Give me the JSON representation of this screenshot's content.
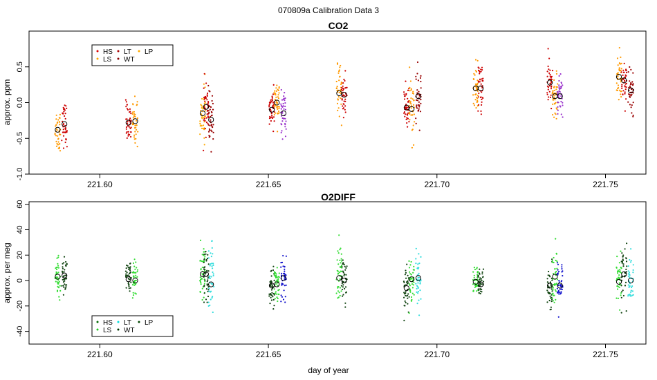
{
  "figure": {
    "title": "070809a   Calibration Data 3",
    "xlabel": "day of year"
  },
  "chart_data": [
    {
      "type": "scatter",
      "id": "co2",
      "title": "CO2",
      "ylabel": "approx. ppm",
      "xlim": [
        221.579,
        221.762
      ],
      "ylim": [
        -1.0,
        1.0
      ],
      "xticks": [
        221.6,
        221.65,
        221.7,
        221.75
      ],
      "xtick_labels": [
        "221.60",
        "221.65",
        "221.70",
        "221.75"
      ],
      "yticks": [
        -1.0,
        -0.5,
        0.0,
        0.5
      ],
      "ytick_labels": [
        "-1.0",
        "-0.5",
        "0.0",
        "0.5"
      ],
      "legend": {
        "position": "top-left",
        "entries": [
          {
            "label": "HS",
            "color": "#dd0000"
          },
          {
            "label": "LT",
            "color": "#aa0000"
          },
          {
            "label": "LP",
            "color": "#ffaa00"
          },
          {
            "label": "LS",
            "color": "#ffaa00"
          },
          {
            "label": "WT",
            "color": "#880000"
          }
        ]
      },
      "groups": [
        {
          "x": 221.5875,
          "mean": -0.38,
          "spread": 0.33,
          "color": "#ff9900"
        },
        {
          "x": 221.5895,
          "mean": -0.3,
          "spread": 0.28,
          "color": "#cc0000"
        },
        {
          "x": 221.6085,
          "mean": -0.28,
          "spread": 0.3,
          "color": "#cc0000"
        },
        {
          "x": 221.6105,
          "mean": -0.26,
          "spread": 0.32,
          "color": "#ff9900"
        },
        {
          "x": 221.6305,
          "mean": -0.15,
          "spread": 0.38,
          "color": "#ffaa00"
        },
        {
          "x": 221.6315,
          "mean": -0.06,
          "spread": 0.35,
          "color": "#cc0000"
        },
        {
          "x": 221.633,
          "mean": -0.24,
          "spread": 0.35,
          "color": "#990000"
        },
        {
          "x": 221.651,
          "mean": -0.1,
          "spread": 0.25,
          "color": "#cc0000"
        },
        {
          "x": 221.6525,
          "mean": 0.0,
          "spread": 0.28,
          "color": "#ff9900"
        },
        {
          "x": 221.6545,
          "mean": -0.15,
          "spread": 0.3,
          "color": "#9933cc"
        },
        {
          "x": 221.671,
          "mean": 0.13,
          "spread": 0.35,
          "color": "#ff9900"
        },
        {
          "x": 221.6725,
          "mean": 0.11,
          "spread": 0.35,
          "color": "#cc0000"
        },
        {
          "x": 221.691,
          "mean": -0.07,
          "spread": 0.35,
          "color": "#cc0000"
        },
        {
          "x": 221.6925,
          "mean": -0.09,
          "spread": 0.38,
          "color": "#ff9900"
        },
        {
          "x": 221.6945,
          "mean": 0.09,
          "spread": 0.4,
          "color": "#990000"
        },
        {
          "x": 221.7115,
          "mean": 0.2,
          "spread": 0.32,
          "color": "#ff9900"
        },
        {
          "x": 221.713,
          "mean": 0.2,
          "spread": 0.35,
          "color": "#cc0000"
        },
        {
          "x": 221.7335,
          "mean": 0.28,
          "spread": 0.3,
          "color": "#cc0000"
        },
        {
          "x": 221.735,
          "mean": 0.09,
          "spread": 0.3,
          "color": "#ff9900"
        },
        {
          "x": 221.7365,
          "mean": 0.09,
          "spread": 0.28,
          "color": "#9933cc"
        },
        {
          "x": 221.754,
          "mean": 0.36,
          "spread": 0.32,
          "color": "#ff9900"
        },
        {
          "x": 221.7555,
          "mean": 0.31,
          "spread": 0.3,
          "color": "#cc0000"
        },
        {
          "x": 221.7575,
          "mean": 0.17,
          "spread": 0.35,
          "color": "#990000"
        }
      ]
    },
    {
      "type": "scatter",
      "id": "o2diff",
      "title": "O2DIFF",
      "ylabel": "approx. per meg",
      "xlim": [
        221.579,
        221.762
      ],
      "ylim": [
        -50,
        62
      ],
      "xticks": [
        221.6,
        221.65,
        221.7,
        221.75
      ],
      "xtick_labels": [
        "221.60",
        "221.65",
        "221.70",
        "221.75"
      ],
      "yticks": [
        -40,
        -20,
        0,
        20,
        40,
        60
      ],
      "ytick_labels": [
        "-40",
        "-20",
        "0",
        "20",
        "40",
        "60"
      ],
      "legend": {
        "position": "bottom-left",
        "entries": [
          {
            "label": "HS",
            "color": "#006600"
          },
          {
            "label": "LT",
            "color": "#00dddd"
          },
          {
            "label": "LP",
            "color": "#004400"
          },
          {
            "label": "LS",
            "color": "#22cc22"
          },
          {
            "label": "WT",
            "color": "#003300"
          }
        ]
      },
      "groups": [
        {
          "x": 221.5875,
          "mean": 3,
          "spread": 14,
          "color": "#33dd33"
        },
        {
          "x": 221.5895,
          "mean": 4,
          "spread": 16,
          "color": "#114411"
        },
        {
          "x": 221.6085,
          "mean": 1,
          "spread": 14,
          "color": "#114411"
        },
        {
          "x": 221.6105,
          "mean": 0,
          "spread": 15,
          "color": "#33dd33"
        },
        {
          "x": 221.6305,
          "mean": 5,
          "spread": 25,
          "color": "#33dd33"
        },
        {
          "x": 221.6315,
          "mean": 5,
          "spread": 22,
          "color": "#114411"
        },
        {
          "x": 221.633,
          "mean": -3,
          "spread": 30,
          "color": "#33dddd"
        },
        {
          "x": 221.651,
          "mean": -4,
          "spread": 14,
          "color": "#114411"
        },
        {
          "x": 221.6525,
          "mean": -3,
          "spread": 14,
          "color": "#33dd33"
        },
        {
          "x": 221.6545,
          "mean": 2,
          "spread": 16,
          "color": "#1111cc"
        },
        {
          "x": 221.671,
          "mean": 2,
          "spread": 30,
          "color": "#33dd33"
        },
        {
          "x": 221.6725,
          "mean": 0,
          "spread": 16,
          "color": "#114411"
        },
        {
          "x": 221.691,
          "mean": -6,
          "spread": 18,
          "color": "#114411"
        },
        {
          "x": 221.6925,
          "mean": 1,
          "spread": 16,
          "color": "#33dd33"
        },
        {
          "x": 221.6945,
          "mean": 2,
          "spread": 20,
          "color": "#33dddd"
        },
        {
          "x": 221.7115,
          "mean": -1,
          "spread": 12,
          "color": "#33dd33"
        },
        {
          "x": 221.713,
          "mean": -3,
          "spread": 12,
          "color": "#114411"
        },
        {
          "x": 221.7335,
          "mean": -4,
          "spread": 16,
          "color": "#114411"
        },
        {
          "x": 221.735,
          "mean": 3,
          "spread": 22,
          "color": "#33dd33"
        },
        {
          "x": 221.7365,
          "mean": -4,
          "spread": 20,
          "color": "#1111cc"
        },
        {
          "x": 221.754,
          "mean": -1,
          "spread": 22,
          "color": "#33dd33"
        },
        {
          "x": 221.7555,
          "mean": 5,
          "spread": 25,
          "color": "#114411"
        },
        {
          "x": 221.7575,
          "mean": 0,
          "spread": 20,
          "color": "#33dddd"
        }
      ]
    }
  ]
}
